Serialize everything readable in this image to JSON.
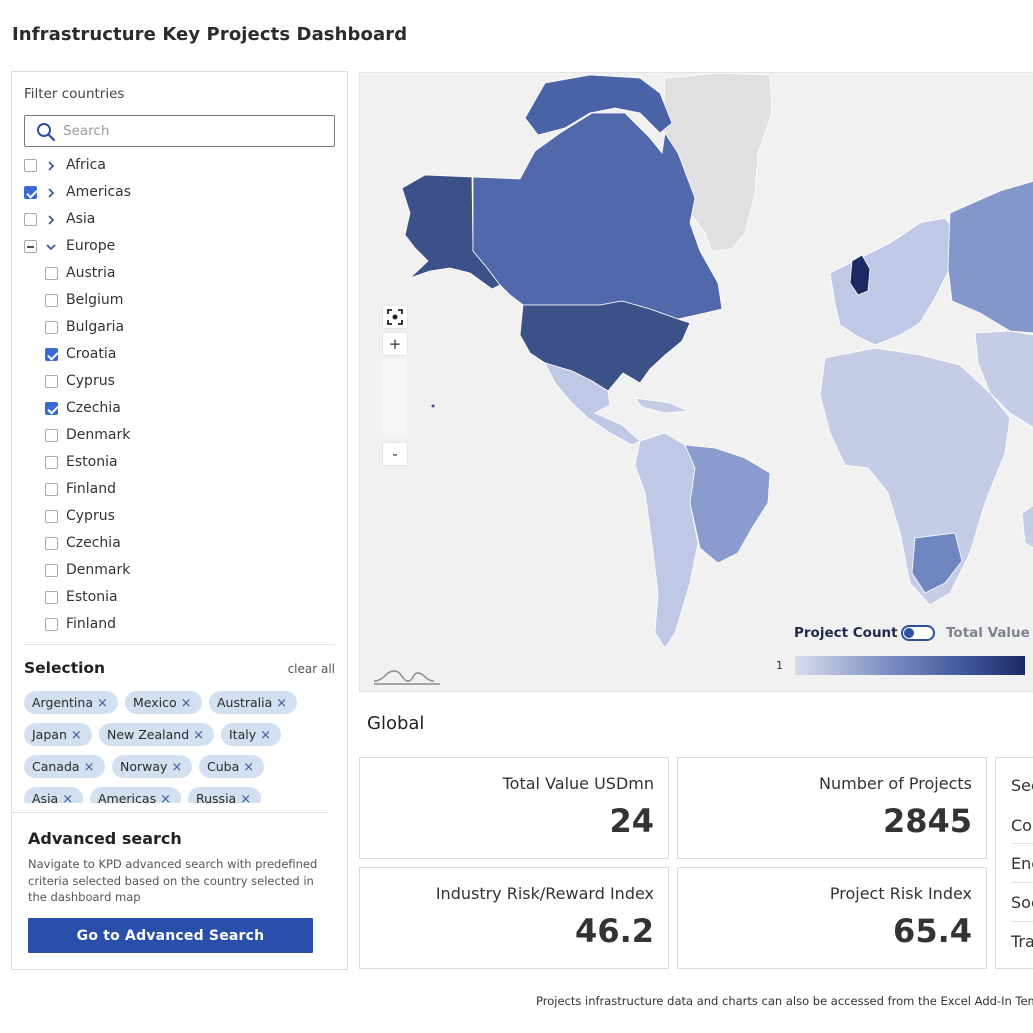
{
  "page": {
    "title": "Infrastructure Key Projects Dashboard"
  },
  "filter": {
    "label": "Filter countries",
    "search_placeholder": "Search",
    "tree": [
      {
        "label": "Africa",
        "state": "unchecked",
        "expander": "collapsed",
        "level": 0
      },
      {
        "label": "Americas",
        "state": "checked",
        "expander": "collapsed",
        "level": 0
      },
      {
        "label": "Asia",
        "state": "unchecked",
        "expander": "collapsed",
        "level": 0
      },
      {
        "label": "Europe",
        "state": "indeterminate",
        "expander": "expanded",
        "level": 0
      },
      {
        "label": "Austria",
        "state": "unchecked",
        "level": 1
      },
      {
        "label": "Belgium",
        "state": "unchecked",
        "level": 1
      },
      {
        "label": "Bulgaria",
        "state": "unchecked",
        "level": 1
      },
      {
        "label": "Croatia",
        "state": "checked",
        "level": 1
      },
      {
        "label": "Cyprus",
        "state": "unchecked",
        "level": 1
      },
      {
        "label": "Czechia",
        "state": "checked",
        "level": 1
      },
      {
        "label": "Denmark",
        "state": "unchecked",
        "level": 1
      },
      {
        "label": "Estonia",
        "state": "unchecked",
        "level": 1
      },
      {
        "label": "Finland",
        "state": "unchecked",
        "level": 1
      },
      {
        "label": "Cyprus",
        "state": "unchecked",
        "level": 1
      },
      {
        "label": "Czechia",
        "state": "unchecked",
        "level": 1
      },
      {
        "label": "Denmark",
        "state": "unchecked",
        "level": 1
      },
      {
        "label": "Estonia",
        "state": "unchecked",
        "level": 1
      },
      {
        "label": "Finland",
        "state": "unchecked",
        "level": 1
      }
    ]
  },
  "selection": {
    "title": "Selection",
    "clear_all": "clear all",
    "remove_glyph": "×",
    "chips": [
      [
        "Argentina",
        "Mexico",
        "Australia"
      ],
      [
        "Japan",
        "New Zealand",
        "Italy"
      ],
      [
        "Canada",
        "Norway",
        "Cuba"
      ],
      [
        "Asia",
        "Americas",
        "Russia"
      ]
    ]
  },
  "advanced": {
    "title": "Advanced search",
    "description": "Navigate to KPD advanced search with predefined criteria selected based on the country selected in the dashboard map",
    "button_label": "Go to Advanced Search"
  },
  "map": {
    "controls": {
      "zoom_in": "+",
      "zoom_out": "-",
      "fit_icon": "fit-to-screen-icon"
    },
    "toggle": {
      "left_label": "Project Count",
      "right_label": "Total Value",
      "active": "Project Count"
    },
    "legend": {
      "min_label": "1"
    },
    "colors": {
      "ocean": "#f1f1f1",
      "no_data": "#e0e0e0",
      "low": "#d7dcec",
      "high": "#1c2a64",
      "accent": "#2a4fab"
    }
  },
  "stats": {
    "section_title": "Global",
    "cards": [
      {
        "label": "Total Value USDmn",
        "value": "24"
      },
      {
        "label": "Number of Projects",
        "value": "2845"
      },
      {
        "label": "Industry Risk/Reward Index",
        "value": "46.2"
      },
      {
        "label": "Project Risk Index",
        "value": "65.4"
      }
    ],
    "sector": {
      "title": "Sec",
      "items": [
        "Co",
        "Ene",
        "Soc",
        "Tra"
      ]
    }
  },
  "footer": {
    "note": "Projects infrastructure data and charts can also be accessed from the Excel Add-In Templ"
  }
}
